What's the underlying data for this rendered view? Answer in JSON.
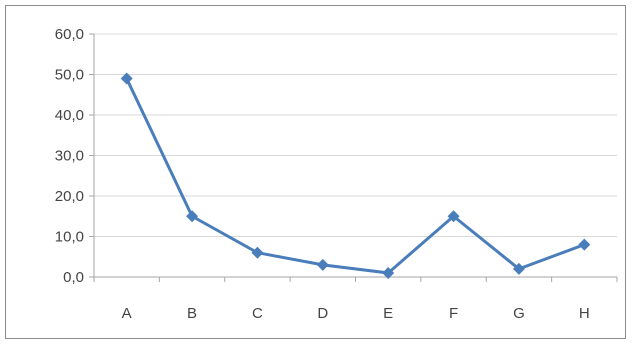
{
  "chart_data": {
    "type": "line",
    "categories": [
      "A",
      "B",
      "C",
      "D",
      "E",
      "F",
      "G",
      "H"
    ],
    "series": [
      {
        "values": [
          49,
          15,
          6,
          3,
          1,
          15,
          2,
          8
        ]
      }
    ],
    "ylim": [
      0,
      60
    ],
    "yticks": [
      "0,0",
      "10,0",
      "20,0",
      "30,0",
      "40,0",
      "50,0",
      "60,0"
    ],
    "grid": "horizontal",
    "legend": "none",
    "colors": {
      "line": "#4a7ebb",
      "gridline": "#d9d9d9",
      "axis": "#a6a6a6",
      "text": "#444444"
    }
  }
}
